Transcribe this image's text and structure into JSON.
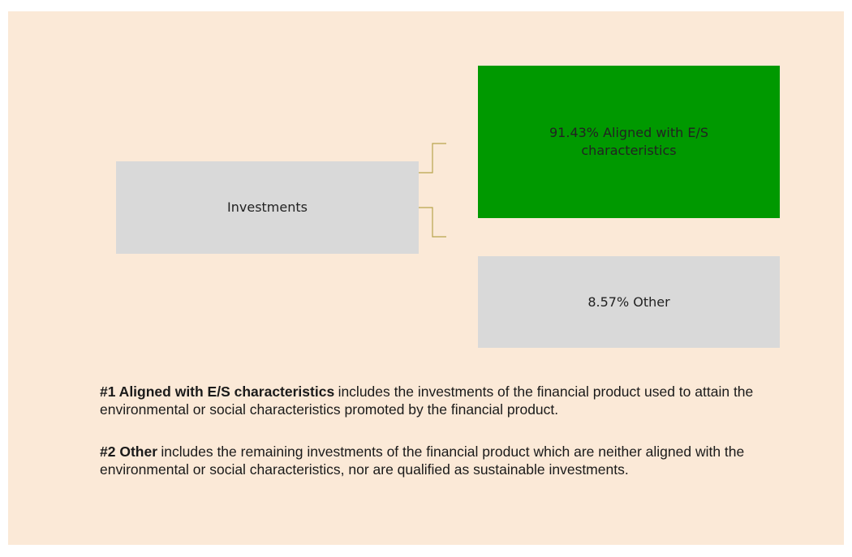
{
  "nodes": [
    {
      "label": "Investments"
    },
    {
      "label": "91.43% Aligned with E/S characteristics"
    },
    {
      "label": "8.57% Other"
    }
  ],
  "notes": [
    {
      "term": "#1 Aligned with E/S characteristics",
      "text": "includes the investments of the financial product used to attain the environmental or social characteristics promoted by the financial product."
    },
    {
      "term": "#2 Other",
      "text": "includes the remaining investments of the financial product which are neither aligned with the environmental or social characteristics, nor are qualified as sustainable investments."
    }
  ]
}
